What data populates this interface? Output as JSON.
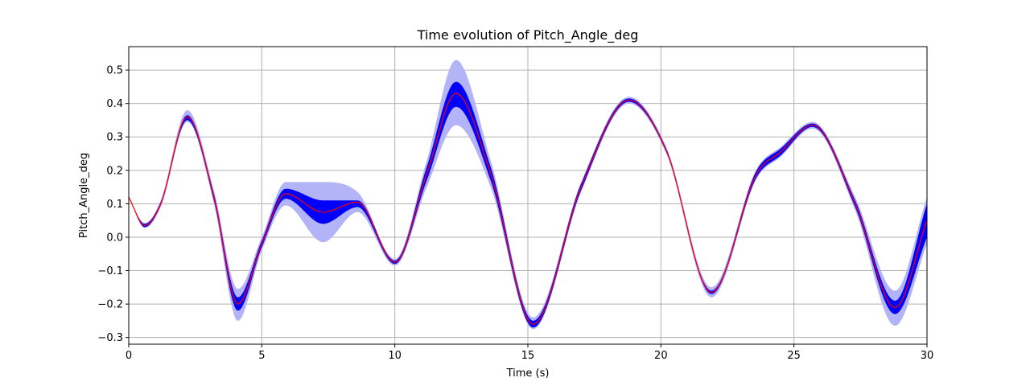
{
  "chart_data": {
    "type": "line",
    "title": "Time evolution of Pitch_Angle_deg",
    "xlabel": "Time (s)",
    "ylabel": "Pitch_Angle_deg",
    "xlim": [
      0,
      30
    ],
    "ylim": [
      -0.32,
      0.57
    ],
    "xticks": [
      0,
      5,
      10,
      15,
      20,
      25,
      30
    ],
    "xtick_labels": [
      "0",
      "5",
      "10",
      "15",
      "20",
      "25",
      "30"
    ],
    "yticks": [
      -0.3,
      -0.2,
      -0.1,
      0.0,
      0.1,
      0.2,
      0.3,
      0.4,
      0.5
    ],
    "ytick_labels": [
      "−0.3",
      "−0.2",
      "−0.1",
      "0.0",
      "0.1",
      "0.2",
      "0.3",
      "0.4",
      "0.5"
    ],
    "grid": true,
    "legend": "none",
    "x": [
      0,
      0.6,
      1.2,
      2.2,
      3.2,
      4.1,
      5.0,
      5.9,
      7.3,
      8.6,
      10.0,
      11.2,
      12.3,
      13.6,
      15.2,
      17.0,
      18.8,
      20.2,
      21.9,
      23.6,
      24.5,
      25.7,
      27.3,
      28.8,
      30.0
    ],
    "mean": [
      0.12,
      0.035,
      0.1,
      0.36,
      0.12,
      -0.2,
      -0.02,
      0.13,
      0.075,
      0.105,
      -0.075,
      0.19,
      0.43,
      0.19,
      -0.26,
      0.15,
      0.41,
      0.26,
      -0.165,
      0.19,
      0.255,
      0.335,
      0.1,
      -0.21,
      0.05
    ],
    "inner_lower": [
      0.12,
      0.03,
      0.095,
      0.35,
      0.11,
      -0.22,
      -0.03,
      0.115,
      0.04,
      0.09,
      -0.08,
      0.17,
      0.39,
      0.17,
      -0.27,
      0.14,
      0.405,
      0.255,
      -0.17,
      0.18,
      0.245,
      0.33,
      0.09,
      -0.23,
      0.0
    ],
    "inner_upper": [
      0.12,
      0.04,
      0.105,
      0.365,
      0.13,
      -0.18,
      -0.01,
      0.145,
      0.11,
      0.11,
      -0.07,
      0.21,
      0.465,
      0.21,
      -0.25,
      0.16,
      0.415,
      0.265,
      -0.16,
      0.2,
      0.265,
      0.34,
      0.11,
      -0.19,
      0.1
    ],
    "outer_lower": [
      0.12,
      0.028,
      0.09,
      0.345,
      0.1,
      -0.25,
      -0.04,
      0.095,
      -0.015,
      0.075,
      -0.085,
      0.15,
      0.335,
      0.15,
      -0.275,
      0.135,
      0.4,
      0.25,
      -0.18,
      0.175,
      0.24,
      0.325,
      0.08,
      -0.265,
      -0.02
    ],
    "outer_upper": [
      0.12,
      0.042,
      0.11,
      0.38,
      0.14,
      -0.155,
      0.0,
      0.165,
      0.165,
      0.135,
      -0.065,
      0.23,
      0.53,
      0.23,
      -0.24,
      0.165,
      0.42,
      0.27,
      -0.15,
      0.205,
      0.27,
      0.345,
      0.12,
      -0.16,
      0.12
    ],
    "colors": {
      "mean_line": "#ff0000",
      "inner_band": "#0000ff",
      "outer_band": "#b3b3f7",
      "grid": "#b0b0b0"
    }
  }
}
